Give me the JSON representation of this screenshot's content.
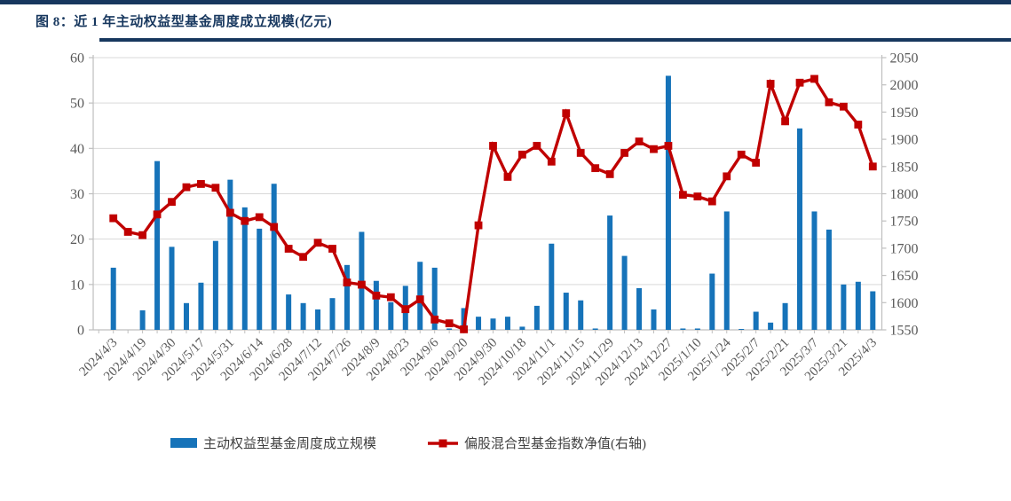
{
  "header": {
    "title": "图 8：近 1 年主动权益型基金周度成立规模(亿元)"
  },
  "legend": {
    "bar_label": "主动权益型基金周度成立规模",
    "line_label": "偏股混合型基金指数净值(右轴)"
  },
  "colors": {
    "bar": "#1673B9",
    "line": "#C00000",
    "axis_text": "#595959",
    "axis_line": "#BFBFBF",
    "gridline": "#D9D9D9",
    "accent_navy": "#17375E"
  },
  "chart_data": {
    "type": "bar",
    "title": "近 1 年主动权益型基金周度成立规模(亿元)",
    "xlabel": "",
    "ylabel_left": "",
    "ylabel_right": "",
    "grid": true,
    "legend_position": "bottom",
    "categories": [
      "",
      "2024/4/3",
      "",
      "2024/4/19",
      "",
      "2024/4/30",
      "",
      "2024/5/17",
      "",
      "2024/5/31",
      "",
      "2024/6/14",
      "",
      "2024/6/28",
      "",
      "2024/7/12",
      "",
      "2024/7/26",
      "",
      "2024/8/9",
      "",
      "2024/8/23",
      "",
      "2024/9/6",
      "",
      "2024/9/20",
      "",
      "2024/9/30",
      "",
      "2024/10/18",
      "",
      "2024/11/1",
      "",
      "2024/11/15",
      "",
      "2024/11/29",
      "",
      "2024/12/13",
      "",
      "2024/12/27",
      "",
      "2025/1/10",
      "",
      "2025/1/24",
      "",
      "2025/2/7",
      "",
      "2025/2/21",
      "",
      "2025/3/7",
      "",
      "2025/3/21",
      "",
      "2025/4/3"
    ],
    "series": [
      {
        "name": "主动权益型基金周度成立规模",
        "type": "bar",
        "axis": "left",
        "values": [
          0,
          13.7,
          0,
          4.3,
          37.2,
          18.3,
          5.9,
          10.4,
          19.6,
          33.1,
          27.0,
          22.3,
          32.2,
          7.8,
          5.9,
          4.5,
          7.0,
          14.3,
          21.6,
          10.8,
          6.1,
          9.7,
          15.0,
          13.7,
          0.3,
          4.8,
          2.9,
          2.5,
          2.9,
          0.7,
          5.3,
          19.0,
          8.2,
          6.5,
          0.3,
          25.2,
          16.3,
          9.2,
          4.5,
          56.0,
          0.3,
          0.3,
          12.4,
          26.1,
          0.2,
          4.0,
          1.6,
          5.9,
          44.4,
          26.1,
          22.1,
          10.0,
          10.6,
          8.5
        ]
      },
      {
        "name": "偏股混合型基金指数净值(右轴)",
        "type": "line",
        "axis": "right",
        "values": [
          null,
          1755,
          1730,
          1724,
          1762,
          1785,
          1812,
          1818,
          1811,
          1765,
          1750,
          1757,
          1739,
          1699,
          1684,
          1710,
          1699,
          1637,
          1633,
          1613,
          1610,
          1588,
          1606,
          1569,
          1562,
          1551,
          1742,
          1888,
          1831,
          1872,
          1888,
          1859,
          1948,
          1875,
          1847,
          1836,
          1875,
          1896,
          1882,
          1888,
          1798,
          1795,
          1786,
          1832,
          1872,
          1857,
          2002,
          1933,
          2004,
          2011,
          1968,
          1960,
          1927,
          1850
        ]
      }
    ],
    "left_axis": {
      "min": 0,
      "max": 60,
      "step": 10,
      "ticks": [
        0,
        10,
        20,
        30,
        40,
        50,
        60
      ]
    },
    "right_axis": {
      "min": 1550,
      "max": 2050,
      "step": 50,
      "ticks": [
        1550,
        1600,
        1650,
        1700,
        1750,
        1800,
        1850,
        1900,
        1950,
        2000,
        2050
      ]
    }
  }
}
